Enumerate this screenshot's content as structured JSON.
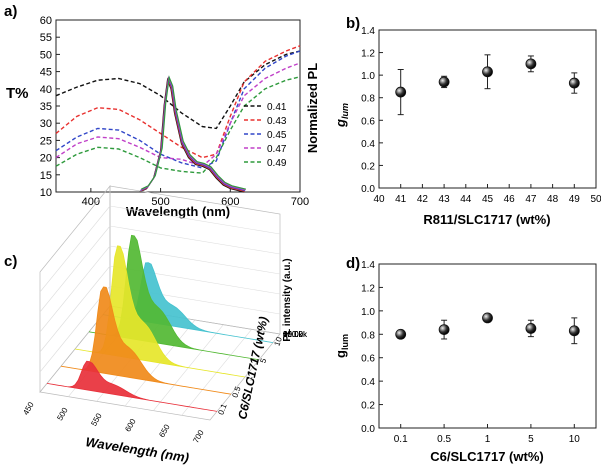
{
  "chart_data": [
    {
      "panel": "a)",
      "type": "line",
      "xlabel": "Wavelength (nm)",
      "ylabel_left": "T%",
      "ylabel_right": "Normalized PL",
      "xlim": [
        350,
        700
      ],
      "ylim": [
        10,
        60
      ],
      "x_ticks": [
        "400",
        "500",
        "600",
        "700"
      ],
      "y_ticks": [
        "10",
        "15",
        "20",
        "25",
        "30",
        "35",
        "40",
        "45",
        "50",
        "55",
        "60"
      ],
      "legend_position": "right",
      "colors": [
        "#111111",
        "#e8312f",
        "#3146c8",
        "#c040c8",
        "#2e9a3c"
      ],
      "series": [
        {
          "name": "0.41",
          "x": [
            350,
            380,
            410,
            440,
            470,
            500,
            530,
            560,
            580,
            600,
            620,
            650,
            680,
            700
          ],
          "values": [
            38,
            40.5,
            42.5,
            43,
            41.5,
            38,
            33,
            29,
            28.5,
            35,
            42,
            47,
            50,
            51
          ]
        },
        {
          "name": "0.43",
          "x": [
            350,
            380,
            410,
            440,
            470,
            500,
            530,
            560,
            580,
            600,
            620,
            650,
            680,
            700
          ],
          "values": [
            27,
            32,
            34.5,
            34,
            31,
            27,
            23,
            20,
            21,
            32,
            42,
            48,
            51,
            52.5
          ]
        },
        {
          "name": "0.45",
          "x": [
            350,
            380,
            410,
            440,
            470,
            500,
            530,
            560,
            580,
            600,
            620,
            650,
            680,
            700
          ],
          "values": [
            22,
            26,
            28.5,
            28,
            25,
            21,
            18.5,
            17,
            19,
            30,
            40,
            46,
            49.5,
            51
          ]
        },
        {
          "name": "0.47",
          "x": [
            350,
            380,
            410,
            440,
            470,
            500,
            530,
            560,
            580,
            600,
            620,
            650,
            680,
            700
          ],
          "values": [
            20,
            24,
            26,
            25.5,
            23,
            20,
            19.5,
            17.5,
            21,
            30,
            38,
            43,
            46,
            47.5
          ]
        },
        {
          "name": "0.49",
          "x": [
            350,
            380,
            410,
            440,
            470,
            500,
            530,
            560,
            580,
            600,
            620,
            650,
            680,
            700
          ],
          "values": [
            17.5,
            21,
            23,
            22.5,
            20,
            17,
            16,
            15.5,
            20,
            28,
            35,
            40,
            42.5,
            43.5
          ]
        }
      ],
      "pl_x": [
        470,
        480,
        490,
        500,
        505,
        510,
        515,
        520,
        530,
        540,
        550,
        560,
        570,
        580,
        590,
        600,
        620
      ],
      "pl_values": [
        10,
        11,
        14,
        22,
        35,
        42.5,
        40,
        33,
        24,
        20,
        18,
        17.5,
        16.5,
        14,
        12,
        11,
        10
      ]
    },
    {
      "panel": "b)",
      "type": "scatter",
      "xlabel": "R811/SLC1717 (wt%)",
      "ylabel": "g_lum",
      "xlim": [
        40,
        50
      ],
      "ylim": [
        0,
        1.4
      ],
      "x_ticks": [
        "40",
        "41",
        "42",
        "43",
        "44",
        "45",
        "46",
        "47",
        "48",
        "49",
        "50"
      ],
      "y_ticks": [
        "0.0",
        "0.2",
        "0.4",
        "0.6",
        "0.8",
        "1.0",
        "1.2",
        "1.4"
      ],
      "x": [
        41,
        43,
        45,
        47,
        49
      ],
      "values": [
        0.85,
        0.94,
        1.03,
        1.1,
        0.93
      ],
      "err": [
        0.2,
        0.05,
        0.15,
        0.07,
        0.09
      ]
    },
    {
      "panel": "c)",
      "type": "area",
      "xlabel": "Wavelength (nm)",
      "ylabel": "PL intensity (a.u.)",
      "zlabel": "C6/SLC1717 (wt%)",
      "x_ticks": [
        "450",
        "500",
        "550",
        "600",
        "650",
        "700"
      ],
      "z_ticks": [
        "0.1",
        "0.5",
        "1",
        "5",
        "10"
      ],
      "y_ticks": [
        "20.0k",
        "40.0k",
        "60.0k",
        "80.0k",
        "100.0k",
        "120.0k"
      ],
      "colors": [
        "#e8303a",
        "#f08a1a",
        "#e6e62a",
        "#52b833",
        "#45c2cf"
      ],
      "series": [
        {
          "name": "0.1",
          "peak_nm": 510,
          "peak": 30000
        },
        {
          "name": "0.5",
          "peak_nm": 512,
          "peak": 90000
        },
        {
          "name": "1",
          "peak_nm": 513,
          "peak": 115000
        },
        {
          "name": "5",
          "peak_nm": 514,
          "peak": 108000
        },
        {
          "name": "10",
          "peak_nm": 515,
          "peak": 62000
        }
      ]
    },
    {
      "panel": "d)",
      "type": "scatter",
      "xlabel": "C6/SLC1717 (wt%)",
      "ylabel": "g_lum",
      "ylim": [
        0,
        1.4
      ],
      "categories": [
        "0.1",
        "0.5",
        "1",
        "5",
        "10"
      ],
      "y_ticks": [
        "0.0",
        "0.2",
        "0.4",
        "0.6",
        "0.8",
        "1.0",
        "1.2",
        "1.4"
      ],
      "values": [
        0.8,
        0.84,
        0.94,
        0.85,
        0.83
      ],
      "err": [
        0.02,
        0.08,
        0.03,
        0.07,
        0.11
      ]
    }
  ]
}
